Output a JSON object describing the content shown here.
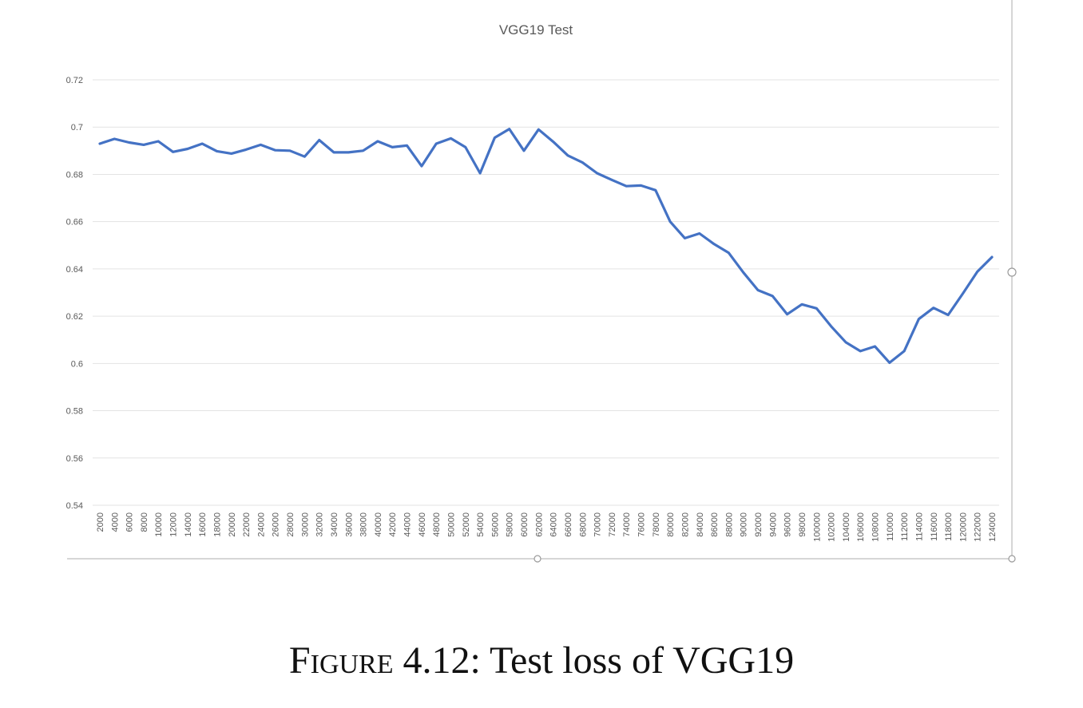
{
  "chart_data": {
    "type": "line",
    "title": "VGG19 Test",
    "xlabel": "",
    "ylabel": "",
    "ylim": [
      0.54,
      0.72
    ],
    "yticks": [
      "0.54",
      "0.56",
      "0.58",
      "0.6",
      "0.62",
      "0.64",
      "0.66",
      "0.68",
      "0.7",
      "0.72"
    ],
    "ytick_values": [
      0.54,
      0.56,
      0.58,
      0.6,
      0.62,
      0.64,
      0.66,
      0.68,
      0.7,
      0.72
    ],
    "grid": true,
    "legend": "none",
    "line_color": "#4472c4",
    "grid_color": "#e3e3e3",
    "x": [
      2000,
      4000,
      6000,
      8000,
      10000,
      12000,
      14000,
      16000,
      18000,
      20000,
      22000,
      24000,
      26000,
      28000,
      30000,
      32000,
      34000,
      36000,
      38000,
      40000,
      42000,
      44000,
      46000,
      48000,
      50000,
      52000,
      54000,
      56000,
      58000,
      60000,
      62000,
      64000,
      66000,
      68000,
      70000,
      72000,
      74000,
      76000,
      78000,
      80000,
      82000,
      84000,
      86000,
      88000,
      90000,
      92000,
      94000,
      96000,
      98000,
      100000,
      102000,
      104000,
      106000,
      108000,
      110000,
      112000,
      114000,
      116000,
      118000,
      120000,
      122000,
      124000
    ],
    "series": [
      {
        "values": [
          0.693,
          0.695,
          0.6935,
          0.6925,
          0.694,
          0.6895,
          0.6908,
          0.693,
          0.6898,
          0.6888,
          0.6905,
          0.6925,
          0.6902,
          0.69,
          0.6875,
          0.6945,
          0.6893,
          0.6893,
          0.69,
          0.694,
          0.6915,
          0.6922,
          0.6835,
          0.693,
          0.6952,
          0.6915,
          0.6805,
          0.6955,
          0.6992,
          0.69,
          0.699,
          0.6938,
          0.688,
          0.685,
          0.6805,
          0.6777,
          0.675,
          0.6753,
          0.6733,
          0.66,
          0.653,
          0.655,
          0.6505,
          0.6468,
          0.6385,
          0.631,
          0.6285,
          0.6208,
          0.625,
          0.6233,
          0.6157,
          0.609,
          0.6052,
          0.6072,
          0.6003,
          0.6052,
          0.6188,
          0.6235,
          0.6205,
          0.6295,
          0.6388,
          0.645
        ]
      }
    ]
  },
  "caption": {
    "figure_word": "Figure",
    "rest": " 4.12: Test loss of VGG19"
  }
}
